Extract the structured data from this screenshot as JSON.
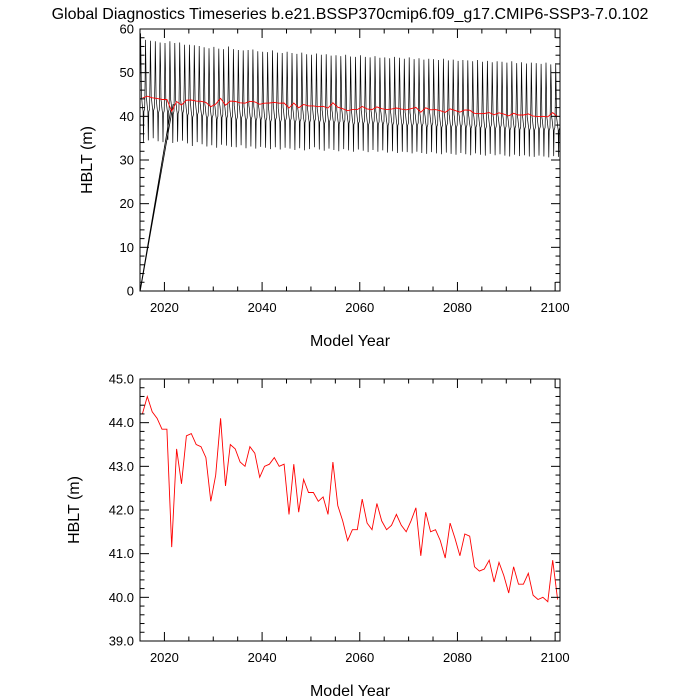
{
  "figure": {
    "title": "Global Diagnostics Timeseries b.e21.BSSP370cmip6.f09_g17.CMIP6-SSP3-7.0.102"
  },
  "chart_data": [
    {
      "type": "line",
      "xlabel": "Model Year",
      "ylabel": "HBLT (m)",
      "xlim": [
        2015,
        2101
      ],
      "ylim": [
        0,
        60
      ],
      "x_ticks": [
        2020,
        2040,
        2060,
        2080,
        2100
      ],
      "y_ticks": [
        0,
        10,
        20,
        30,
        40,
        50,
        60
      ],
      "series": [
        {
          "color": "#000000",
          "style": "monthly",
          "years": [
            2015,
            2016,
            2017,
            2018,
            2019,
            2020,
            2021,
            2022,
            2023,
            2024,
            2025,
            2026,
            2027,
            2028,
            2029,
            2030,
            2031,
            2032,
            2033,
            2034,
            2035,
            2036,
            2037,
            2038,
            2039,
            2040,
            2041,
            2042,
            2043,
            2044,
            2045,
            2046,
            2047,
            2048,
            2049,
            2050,
            2051,
            2052,
            2053,
            2054,
            2055,
            2056,
            2057,
            2058,
            2059,
            2060,
            2061,
            2062,
            2063,
            2064,
            2065,
            2066,
            2067,
            2068,
            2069,
            2070,
            2071,
            2072,
            2073,
            2074,
            2075,
            2076,
            2077,
            2078,
            2079,
            2080,
            2081,
            2082,
            2083,
            2084,
            2085,
            2086,
            2087,
            2088,
            2089,
            2090,
            2091,
            2092,
            2093,
            2094,
            2095,
            2096,
            2097,
            2098,
            2099,
            2100
          ],
          "annual_max": [
            59.0,
            57.5,
            57.3,
            57.2,
            56.9,
            56.8,
            57.2,
            56.8,
            56.9,
            56.4,
            56.4,
            56.3,
            56.1,
            55.8,
            55.6,
            55.9,
            55.5,
            55.4,
            56.0,
            55.4,
            55.2,
            55.1,
            55.2,
            55.3,
            54.9,
            54.8,
            54.7,
            55.1,
            54.6,
            54.5,
            54.8,
            54.5,
            54.3,
            54.6,
            54.2,
            54.1,
            54.4,
            54.1,
            54.2,
            53.9,
            54.0,
            53.8,
            54.1,
            53.7,
            53.6,
            54.0,
            53.6,
            53.5,
            53.8,
            53.4,
            53.5,
            53.3,
            53.6,
            53.4,
            53.2,
            53.5,
            53.1,
            53.3,
            53.0,
            53.2,
            53.1,
            52.9,
            53.2,
            52.8,
            53.0,
            52.7,
            52.9,
            52.8,
            52.6,
            52.9,
            52.5,
            52.7,
            52.4,
            52.6,
            52.5,
            52.3,
            52.6,
            52.2,
            52.4,
            52.1,
            52.3,
            52.2,
            52.0,
            52.3,
            51.9,
            52.2
          ],
          "annual_min": [
            34.0,
            34.5,
            35.0,
            34.3,
            34.1,
            34.6,
            33.9,
            34.2,
            34.4,
            33.8,
            33.2,
            34.1,
            33.6,
            33.1,
            33.4,
            32.8,
            33.5,
            33.3,
            33.0,
            32.9,
            33.4,
            32.7,
            33.1,
            32.6,
            33.0,
            32.8,
            32.5,
            32.9,
            32.4,
            32.8,
            32.6,
            32.3,
            32.7,
            32.2,
            32.5,
            32.9,
            32.4,
            32.1,
            32.6,
            32.3,
            32.0,
            32.5,
            32.2,
            31.9,
            32.4,
            32.1,
            31.8,
            32.3,
            31.9,
            32.2,
            31.7,
            32.0,
            31.6,
            31.9,
            31.8,
            31.5,
            31.9,
            31.6,
            31.4,
            31.8,
            31.5,
            31.3,
            31.7,
            31.4,
            31.2,
            31.6,
            31.3,
            31.1,
            31.5,
            31.2,
            31.0,
            31.4,
            31.1,
            31.3,
            31.0,
            30.8,
            31.2,
            30.9,
            31.1,
            30.8,
            30.7,
            31.0,
            30.8,
            30.6,
            30.9,
            30.7
          ],
          "initial_point": [
            2015,
            0
          ]
        },
        {
          "color": "#ff0000",
          "style": "annual",
          "x": [
            2015.5,
            2016.5,
            2017.5,
            2018.5,
            2019.5,
            2020.5,
            2021.5,
            2022.5,
            2023.5,
            2024.5,
            2025.5,
            2026.5,
            2027.5,
            2028.5,
            2029.5,
            2030.5,
            2031.5,
            2032.5,
            2033.5,
            2034.5,
            2035.5,
            2036.5,
            2037.5,
            2038.5,
            2039.5,
            2040.5,
            2041.5,
            2042.5,
            2043.5,
            2044.5,
            2045.5,
            2046.5,
            2047.5,
            2048.5,
            2049.5,
            2050.5,
            2051.5,
            2052.5,
            2053.5,
            2054.5,
            2055.5,
            2056.5,
            2057.5,
            2058.5,
            2059.5,
            2060.5,
            2061.5,
            2062.5,
            2063.5,
            2064.5,
            2065.5,
            2066.5,
            2067.5,
            2068.5,
            2069.5,
            2070.5,
            2071.5,
            2072.5,
            2073.5,
            2074.5,
            2075.5,
            2076.5,
            2077.5,
            2078.5,
            2079.5,
            2080.5,
            2081.5,
            2082.5,
            2083.5,
            2084.5,
            2085.5,
            2086.5,
            2087.5,
            2088.5,
            2089.5,
            2090.5,
            2091.5,
            2092.5,
            2093.5,
            2094.5,
            2095.5,
            2096.5,
            2097.5,
            2098.5,
            2099.5,
            2100.5
          ],
          "y": [
            44.2,
            44.6,
            44.25,
            44.1,
            43.85,
            43.85,
            41.15,
            43.4,
            42.6,
            43.7,
            43.75,
            43.5,
            43.45,
            43.2,
            42.2,
            42.8,
            44.1,
            42.55,
            43.5,
            43.4,
            43.1,
            43.0,
            43.45,
            43.3,
            42.75,
            43.0,
            43.05,
            43.2,
            43.0,
            43.05,
            41.9,
            43.05,
            41.95,
            42.7,
            42.4,
            42.4,
            42.2,
            42.3,
            41.9,
            43.1,
            42.1,
            41.75,
            41.3,
            41.55,
            41.55,
            42.25,
            41.7,
            41.55,
            42.15,
            41.75,
            41.55,
            41.65,
            41.9,
            41.65,
            41.5,
            41.75,
            42.05,
            40.95,
            41.95,
            41.5,
            41.55,
            41.3,
            40.9,
            41.7,
            41.35,
            40.95,
            41.45,
            41.4,
            40.7,
            40.6,
            40.65,
            40.85,
            40.35,
            40.8,
            40.5,
            40.1,
            40.7,
            40.3,
            40.3,
            40.55,
            40.05,
            39.95,
            40.0,
            39.9,
            40.85,
            39.95
          ]
        }
      ]
    },
    {
      "type": "line",
      "xlabel": "Model Year",
      "ylabel": "HBLT (m)",
      "xlim": [
        2015,
        2101
      ],
      "ylim": [
        39.0,
        45.0
      ],
      "x_ticks": [
        2020,
        2040,
        2060,
        2080,
        2100
      ],
      "y_ticks": [
        39.0,
        40.0,
        41.0,
        42.0,
        43.0,
        44.0,
        45.0
      ],
      "y_tick_labels": [
        "39.0",
        "40.0",
        "41.0",
        "42.0",
        "43.0",
        "44.0",
        "45.0"
      ],
      "series": [
        {
          "color": "#ff0000",
          "x": [
            2015.5,
            2016.5,
            2017.5,
            2018.5,
            2019.5,
            2020.5,
            2021.5,
            2022.5,
            2023.5,
            2024.5,
            2025.5,
            2026.5,
            2027.5,
            2028.5,
            2029.5,
            2030.5,
            2031.5,
            2032.5,
            2033.5,
            2034.5,
            2035.5,
            2036.5,
            2037.5,
            2038.5,
            2039.5,
            2040.5,
            2041.5,
            2042.5,
            2043.5,
            2044.5,
            2045.5,
            2046.5,
            2047.5,
            2048.5,
            2049.5,
            2050.5,
            2051.5,
            2052.5,
            2053.5,
            2054.5,
            2055.5,
            2056.5,
            2057.5,
            2058.5,
            2059.5,
            2060.5,
            2061.5,
            2062.5,
            2063.5,
            2064.5,
            2065.5,
            2066.5,
            2067.5,
            2068.5,
            2069.5,
            2070.5,
            2071.5,
            2072.5,
            2073.5,
            2074.5,
            2075.5,
            2076.5,
            2077.5,
            2078.5,
            2079.5,
            2080.5,
            2081.5,
            2082.5,
            2083.5,
            2084.5,
            2085.5,
            2086.5,
            2087.5,
            2088.5,
            2089.5,
            2090.5,
            2091.5,
            2092.5,
            2093.5,
            2094.5,
            2095.5,
            2096.5,
            2097.5,
            2098.5,
            2099.5,
            2100.5
          ],
          "y": [
            44.2,
            44.6,
            44.25,
            44.1,
            43.85,
            43.85,
            41.15,
            43.4,
            42.6,
            43.7,
            43.75,
            43.5,
            43.45,
            43.2,
            42.2,
            42.8,
            44.1,
            42.55,
            43.5,
            43.4,
            43.1,
            43.0,
            43.45,
            43.3,
            42.75,
            43.0,
            43.05,
            43.2,
            43.0,
            43.05,
            41.9,
            43.05,
            41.95,
            42.7,
            42.4,
            42.4,
            42.2,
            42.3,
            41.9,
            43.1,
            42.1,
            41.75,
            41.3,
            41.55,
            41.55,
            42.25,
            41.7,
            41.55,
            42.15,
            41.75,
            41.55,
            41.65,
            41.9,
            41.65,
            41.5,
            41.75,
            42.05,
            40.95,
            41.95,
            41.5,
            41.55,
            41.3,
            40.9,
            41.7,
            41.35,
            40.95,
            41.45,
            41.4,
            40.7,
            40.6,
            40.65,
            40.85,
            40.35,
            40.8,
            40.5,
            40.1,
            40.7,
            40.3,
            40.3,
            40.55,
            40.05,
            39.95,
            40.0,
            39.9,
            40.85,
            39.95
          ]
        }
      ]
    }
  ]
}
